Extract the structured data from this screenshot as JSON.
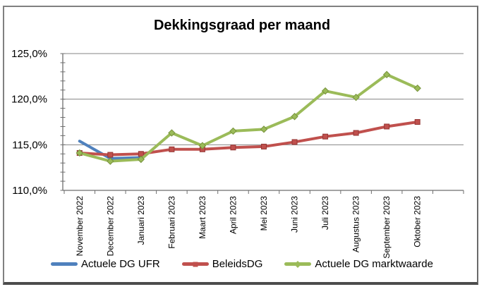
{
  "chart_data": {
    "type": "line",
    "title": "Dekkingsgraad per maand",
    "categories": [
      "November 2022",
      "December 2022",
      "Januari 2023",
      "Februari 2023",
      "Maart 2023",
      "April 2023",
      "Mei 2023",
      "Juni 2023",
      "Juli 2023",
      "Augustus 2023",
      "September 2023",
      "Oktober 2023"
    ],
    "series": [
      {
        "name": "Actuele DG UFR",
        "color": "#4F81BD",
        "edge": "#385D8A",
        "marker": "none",
        "values": [
          115.4,
          113.5,
          113.6,
          null,
          null,
          null,
          null,
          null,
          null,
          null,
          null,
          null
        ]
      },
      {
        "name": "BeleidsDG",
        "color": "#C0504D",
        "edge": "#943634",
        "marker": "square",
        "values": [
          114.1,
          113.9,
          114.0,
          114.5,
          114.5,
          114.7,
          114.8,
          115.3,
          115.9,
          116.3,
          117.0,
          117.5
        ]
      },
      {
        "name": "Actuele DG marktwaarde",
        "color": "#9BBB59",
        "edge": "#77933C",
        "marker": "diamond",
        "values": [
          114.1,
          113.2,
          113.4,
          116.3,
          114.9,
          116.5,
          116.7,
          118.1,
          120.9,
          120.2,
          122.7,
          121.2
        ]
      }
    ],
    "ylim": [
      110,
      125
    ],
    "y_ticks": [
      {
        "value": 110,
        "label": "110,0%"
      },
      {
        "value": 115,
        "label": "115,0%"
      },
      {
        "value": 120,
        "label": "120,0%"
      },
      {
        "value": 125,
        "label": "125,0%"
      }
    ],
    "y_minor_step": 1,
    "extra_x_slots": 1,
    "grid": true,
    "legend_position": "bottom",
    "xlabel": "",
    "ylabel": ""
  },
  "theme": {
    "gridline_color": "#848484",
    "axis_color": "#6e6e6e",
    "label_color": "#000000"
  }
}
